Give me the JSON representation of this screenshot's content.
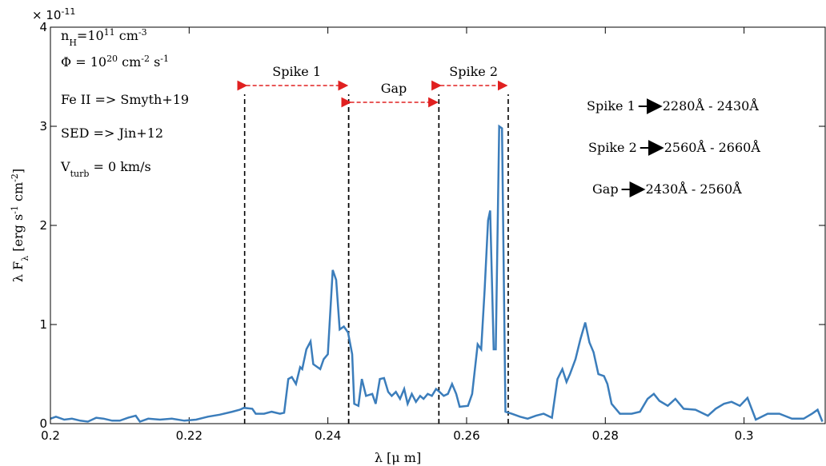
{
  "chart_data": {
    "type": "line",
    "multiplier": [
      {
        "text": "× 10"
      },
      {
        "text": "-11",
        "sup": true
      }
    ],
    "xlabel": [
      {
        "text": "λ [μ m]"
      }
    ],
    "ylabel": [
      {
        "text": "λ F"
      },
      {
        "text": "λ",
        "sub": true
      },
      {
        "text": " [erg s"
      },
      {
        "text": "-1",
        "sup": true
      },
      {
        "text": " cm"
      },
      {
        "text": "-2",
        "sup": true
      },
      {
        "text": "]"
      }
    ],
    "xlim": [
      0.2,
      0.3117
    ],
    "ylim": [
      0,
      4
    ],
    "xticks": [
      0.2,
      0.22,
      0.24,
      0.26,
      0.28,
      0.3
    ],
    "yticks": [
      0,
      1,
      2,
      3,
      4
    ],
    "series": [
      {
        "color": "#3b7dbb",
        "x": [
          0.2,
          0.2008,
          0.202,
          0.2031,
          0.2043,
          0.2054,
          0.2066,
          0.2077,
          0.2089,
          0.21,
          0.2112,
          0.2123,
          0.2129,
          0.2141,
          0.2158,
          0.2175,
          0.2193,
          0.221,
          0.2227,
          0.2244,
          0.2262,
          0.2273,
          0.2279,
          0.2291,
          0.2296,
          0.2308,
          0.2319,
          0.2331,
          0.2337,
          0.2343,
          0.2348,
          0.2354,
          0.236,
          0.2363,
          0.2369,
          0.2375,
          0.2379,
          0.2389,
          0.2394,
          0.24,
          0.2407,
          0.2412,
          0.2417,
          0.2423,
          0.2429,
          0.2435,
          0.2438,
          0.2444,
          0.2449,
          0.2455,
          0.2464,
          0.2469,
          0.2475,
          0.2481,
          0.2487,
          0.2492,
          0.2498,
          0.2504,
          0.251,
          0.2515,
          0.2521,
          0.2527,
          0.2533,
          0.2538,
          0.2544,
          0.255,
          0.2556,
          0.2561,
          0.2567,
          0.2573,
          0.2579,
          0.2585,
          0.259,
          0.2602,
          0.2608,
          0.2616,
          0.2621,
          0.2626,
          0.2631,
          0.2634,
          0.2639,
          0.2642,
          0.2647,
          0.2651,
          0.2656,
          0.2665,
          0.2677,
          0.2688,
          0.27,
          0.2711,
          0.2723,
          0.2731,
          0.2738,
          0.2744,
          0.2749,
          0.2757,
          0.2764,
          0.2771,
          0.2777,
          0.2783,
          0.279,
          0.2798,
          0.2803,
          0.2809,
          0.2821,
          0.2838,
          0.285,
          0.2861,
          0.287,
          0.2878,
          0.289,
          0.2901,
          0.2913,
          0.293,
          0.2948,
          0.2959,
          0.2971,
          0.2982,
          0.2994,
          0.3005,
          0.3017,
          0.3034,
          0.3051,
          0.3069,
          0.3086,
          0.3098,
          0.3106,
          0.3113
        ],
        "values": [
          0.05,
          0.07,
          0.04,
          0.05,
          0.03,
          0.02,
          0.06,
          0.05,
          0.03,
          0.03,
          0.06,
          0.08,
          0.02,
          0.05,
          0.04,
          0.05,
          0.03,
          0.04,
          0.07,
          0.09,
          0.12,
          0.14,
          0.16,
          0.15,
          0.1,
          0.1,
          0.12,
          0.1,
          0.11,
          0.45,
          0.47,
          0.4,
          0.57,
          0.55,
          0.75,
          0.83,
          0.6,
          0.55,
          0.65,
          0.7,
          1.55,
          1.45,
          0.95,
          0.98,
          0.92,
          0.7,
          0.2,
          0.18,
          0.45,
          0.28,
          0.3,
          0.2,
          0.45,
          0.46,
          0.32,
          0.28,
          0.32,
          0.25,
          0.35,
          0.2,
          0.3,
          0.22,
          0.28,
          0.25,
          0.3,
          0.28,
          0.35,
          0.32,
          0.28,
          0.3,
          0.4,
          0.3,
          0.17,
          0.18,
          0.3,
          0.8,
          0.75,
          1.35,
          2.05,
          2.15,
          0.75,
          0.75,
          3.0,
          2.98,
          0.12,
          0.1,
          0.07,
          0.05,
          0.08,
          0.1,
          0.06,
          0.45,
          0.55,
          0.42,
          0.5,
          0.65,
          0.85,
          1.02,
          0.82,
          0.72,
          0.5,
          0.48,
          0.4,
          0.2,
          0.1,
          0.1,
          0.12,
          0.25,
          0.3,
          0.23,
          0.18,
          0.25,
          0.15,
          0.14,
          0.08,
          0.15,
          0.2,
          0.22,
          0.18,
          0.26,
          0.04,
          0.1,
          0.1,
          0.05,
          0.05,
          0.1,
          0.14,
          0.02
        ]
      }
    ],
    "regions": [
      {
        "label": "Spike 1",
        "from": 0.228,
        "to": 0.243
      },
      {
        "label": "Gap",
        "from": 0.243,
        "to": 0.256
      },
      {
        "label": "Spike 2",
        "from": 0.256,
        "to": 0.266
      }
    ],
    "notes": [
      [
        {
          "text": "n"
        },
        {
          "text": "H",
          "sub": true
        },
        {
          "text": "=10"
        },
        {
          "text": "11",
          "sup": true
        },
        {
          "text": " cm"
        },
        {
          "text": "-3",
          "sup": true
        }
      ],
      [
        {
          "text": "Φ = 10"
        },
        {
          "text": "20",
          "sup": true
        },
        {
          "text": " cm"
        },
        {
          "text": "-2",
          "sup": true
        },
        {
          "text": " s"
        },
        {
          "text": "-1",
          "sup": true
        }
      ],
      [
        {
          "text": "Fe II => Smyth+19"
        }
      ],
      [
        {
          "text": "SED => Jin+12"
        }
      ],
      [
        {
          "text": "V"
        },
        {
          "text": "turb",
          "sub": true
        },
        {
          "text": " = 0 km/s"
        }
      ]
    ],
    "ranges": [
      {
        "label": "Spike 1",
        "range": "2280Å - 2430Å"
      },
      {
        "label": "Spike 2",
        "range": "2560Å - 2660Å"
      },
      {
        "label": "Gap",
        "range": "2430Å - 2560Å"
      }
    ]
  }
}
